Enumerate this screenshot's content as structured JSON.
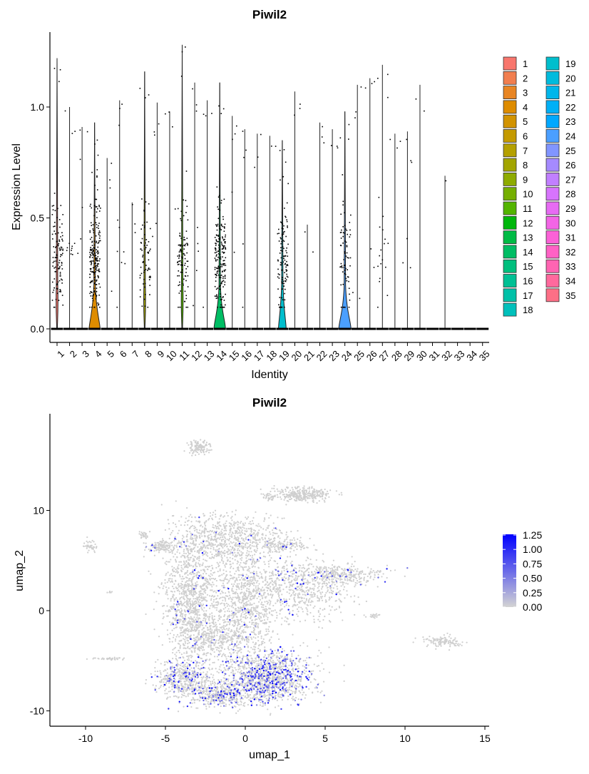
{
  "chart_data": [
    {
      "type": "violin",
      "title": "Piwil2",
      "xlabel": "Identity",
      "ylabel": "Expression Level",
      "ylim": [
        -0.06,
        1.33
      ],
      "yticks": [
        "0.0",
        "0.5",
        "1.0"
      ],
      "ytick_values": [
        0,
        0.5,
        1.0
      ],
      "categories": [
        "1",
        "2",
        "3",
        "4",
        "5",
        "6",
        "7",
        "8",
        "9",
        "10",
        "11",
        "12",
        "13",
        "14",
        "15",
        "16",
        "17",
        "18",
        "19",
        "20",
        "21",
        "22",
        "23",
        "24",
        "25",
        "26",
        "27",
        "28",
        "29",
        "30",
        "31",
        "32",
        "33",
        "34",
        "35"
      ],
      "max_values": [
        1.22,
        1.0,
        0.91,
        0.93,
        0.77,
        1.03,
        0.57,
        1.16,
        1.02,
        0.98,
        1.28,
        1.11,
        1.03,
        1.11,
        0.96,
        0.9,
        0.88,
        0.87,
        0.85,
        1.07,
        0.47,
        0.93,
        0.9,
        0.98,
        1.1,
        1.13,
        1.19,
        0.88,
        0.89,
        1.1,
        0,
        0.69,
        0,
        0,
        0
      ],
      "points_above_zero": [
        110,
        12,
        6,
        200,
        4,
        10,
        3,
        70,
        5,
        4,
        100,
        8,
        4,
        190,
        5,
        5,
        3,
        2,
        110,
        3,
        2,
        3,
        3,
        70,
        5,
        5,
        20,
        3,
        6,
        2,
        0,
        1,
        0,
        0,
        0
      ],
      "violin_width": [
        0.05,
        0,
        0,
        0.85,
        0,
        0,
        0,
        0.05,
        0,
        0,
        0.05,
        0,
        0,
        0.9,
        0,
        0,
        0,
        0,
        0.6,
        0,
        0,
        0,
        0,
        0.95,
        0,
        0,
        0,
        0,
        0,
        0,
        0,
        0,
        0,
        0,
        0
      ],
      "legend": {
        "placement": "right",
        "entries": [
          "1",
          "2",
          "3",
          "4",
          "5",
          "6",
          "7",
          "8",
          "9",
          "10",
          "11",
          "12",
          "13",
          "14",
          "15",
          "16",
          "17",
          "18",
          "19",
          "20",
          "21",
          "22",
          "23",
          "24",
          "25",
          "26",
          "27",
          "28",
          "29",
          "30",
          "31",
          "32",
          "33",
          "34",
          "35"
        ]
      }
    },
    {
      "type": "scatter",
      "title": "Piwil2",
      "xlabel": "umap_1",
      "ylabel": "umap_2",
      "xlim": [
        -12.3,
        15.2
      ],
      "ylim": [
        -11.5,
        19.5
      ],
      "xticks": [
        "-10",
        "-5",
        "0",
        "5",
        "10",
        "15"
      ],
      "xtick_values": [
        -10,
        -5,
        0,
        5,
        10,
        15
      ],
      "yticks": [
        "-10",
        "0",
        "10"
      ],
      "ytick_values": [
        -10,
        0,
        10
      ],
      "colorbar": {
        "ticks": [
          "1.25",
          "1.00",
          "0.75",
          "0.50",
          "0.25",
          "0.00"
        ],
        "values": [
          1.25,
          1.0,
          0.75,
          0.5,
          0.25,
          0
        ],
        "low": "#d3d3d3",
        "high": "#0000ff",
        "placement": "right"
      },
      "clusters": [
        {
          "cx": -2.9,
          "cy": 16.3,
          "sx": 0.35,
          "sy": 0.35,
          "n": 120,
          "expr": 0
        },
        {
          "cx": 3.6,
          "cy": 11.6,
          "sx": 0.9,
          "sy": 0.35,
          "n": 300,
          "expr": 0
        },
        {
          "cx": 1.5,
          "cy": 11.3,
          "sx": 0.2,
          "sy": 0.2,
          "n": 30,
          "expr": 0
        },
        {
          "cx": -9.7,
          "cy": 6.5,
          "sx": 0.2,
          "sy": 0.35,
          "n": 40,
          "expr": 0.05
        },
        {
          "cx": -6.4,
          "cy": 7.6,
          "sx": 0.2,
          "sy": 0.15,
          "n": 30,
          "expr": 0
        },
        {
          "cx": -5.3,
          "cy": 6.4,
          "sx": 0.45,
          "sy": 0.3,
          "n": 120,
          "expr": 0.02
        },
        {
          "cx": -3.5,
          "cy": 1.5,
          "sx": 0.8,
          "sy": 3,
          "n": 1100,
          "expr": 0.03
        },
        {
          "cx": -1,
          "cy": 7.2,
          "sx": 1.6,
          "sy": 1.2,
          "n": 700,
          "expr": 0.02
        },
        {
          "cx": 0,
          "cy": 1.3,
          "sx": 1,
          "sy": 2.2,
          "n": 800,
          "expr": 0.03
        },
        {
          "cx": -1.8,
          "cy": -2.8,
          "sx": 1.4,
          "sy": 1,
          "n": 500,
          "expr": 0.04
        },
        {
          "cx": 3.5,
          "cy": 2.2,
          "sx": 1.5,
          "sy": 1.5,
          "n": 600,
          "expr": 0.05
        },
        {
          "cx": 6,
          "cy": 3.5,
          "sx": 1.3,
          "sy": 0.5,
          "n": 300,
          "expr": 0.05
        },
        {
          "cx": 2.3,
          "cy": 6.5,
          "sx": 0.8,
          "sy": 0.3,
          "n": 150,
          "expr": 0.02
        },
        {
          "cx": -3.8,
          "cy": -6.8,
          "sx": 0.9,
          "sy": 1,
          "n": 500,
          "expr": 0.18
        },
        {
          "cx": -1.6,
          "cy": -8.4,
          "sx": 1,
          "sy": 0.6,
          "n": 400,
          "expr": 0.2
        },
        {
          "cx": 1.4,
          "cy": -6.6,
          "sx": 1.4,
          "sy": 1.3,
          "n": 1300,
          "expr": 0.22
        },
        {
          "cx": 12.4,
          "cy": -3.1,
          "sx": 0.6,
          "sy": 0.3,
          "n": 120,
          "expr": 0
        },
        {
          "cx": -8.8,
          "cy": -4.8,
          "sx": 0.5,
          "sy": 0.06,
          "n": 40,
          "expr": 0
        },
        {
          "cx": 8,
          "cy": -0.5,
          "sx": 0.25,
          "sy": 0.15,
          "n": 20,
          "expr": 0
        },
        {
          "cx": -8.5,
          "cy": 1.8,
          "sx": 0.1,
          "sy": 0.1,
          "n": 6,
          "expr": 0
        }
      ]
    }
  ]
}
